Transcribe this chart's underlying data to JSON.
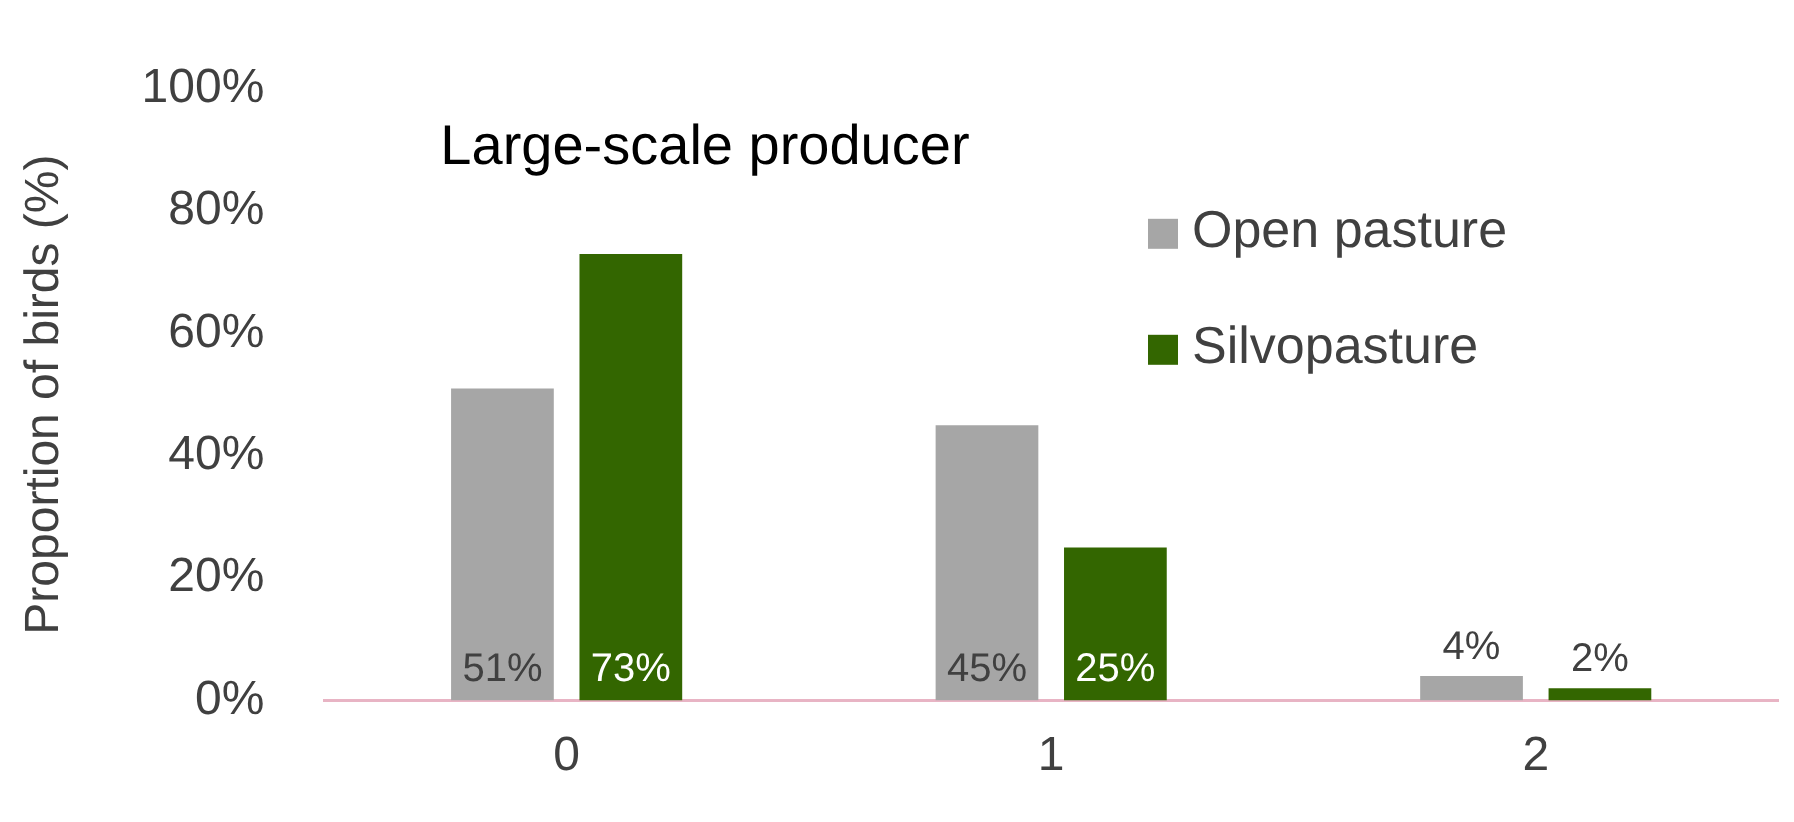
{
  "chart_data": {
    "type": "bar",
    "title": "Large-scale producer",
    "ylabel": "Proportion of birds (%)",
    "categories": [
      "0",
      "1",
      "2"
    ],
    "series": [
      {
        "name": "Open pasture",
        "color": "#a6a6a6",
        "values": [
          51,
          45,
          4
        ],
        "value_labels": [
          "51%",
          "45%",
          "4%"
        ]
      },
      {
        "name": "Silvopasture",
        "color": "#336600",
        "values": [
          73,
          25,
          2
        ],
        "value_labels": [
          "73%",
          "25%",
          "2%"
        ]
      }
    ],
    "ylim": [
      0,
      100
    ],
    "yticks": [
      {
        "value": 0,
        "label": "0%"
      },
      {
        "value": 20,
        "label": "20%"
      },
      {
        "value": 40,
        "label": "40%"
      },
      {
        "value": 60,
        "label": "60%"
      },
      {
        "value": 80,
        "label": "80%"
      },
      {
        "value": 100,
        "label": "100%"
      }
    ],
    "grid": false,
    "legend": "top right"
  }
}
